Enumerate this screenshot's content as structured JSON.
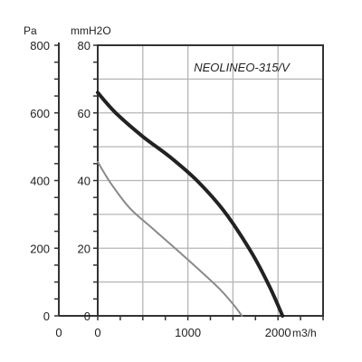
{
  "chart_data": {
    "type": "line",
    "title": "NEOLINEO-315/V",
    "xlabel": "m3/h",
    "ylabel_left": "Pa",
    "ylabel_right": "mmH2O",
    "xlim": [
      0,
      2500
    ],
    "ylim_mm": [
      0,
      80
    ],
    "ylim_pa": [
      0,
      800
    ],
    "x_ticks": [
      "0",
      "1000",
      "2000"
    ],
    "x_origin_label": "0",
    "y_ticks_pa": [
      "0",
      "200",
      "400",
      "600",
      "800"
    ],
    "y_ticks_mm": [
      "0",
      "20",
      "40",
      "60",
      "80"
    ],
    "grid": true,
    "series": [
      {
        "role": "high-speed",
        "color": "#222222",
        "points": [
          [
            0,
            66
          ],
          [
            200,
            60
          ],
          [
            500,
            53
          ],
          [
            800,
            47
          ],
          [
            1100,
            40
          ],
          [
            1400,
            31
          ],
          [
            1700,
            19
          ],
          [
            1900,
            9
          ],
          [
            2050,
            0
          ]
        ]
      },
      {
        "role": "low-speed",
        "color": "#8a8a8a",
        "points": [
          [
            0,
            45.5
          ],
          [
            150,
            39
          ],
          [
            350,
            32
          ],
          [
            600,
            26
          ],
          [
            900,
            19
          ],
          [
            1150,
            13
          ],
          [
            1350,
            8
          ],
          [
            1500,
            3.5
          ],
          [
            1600,
            0
          ]
        ]
      }
    ]
  }
}
